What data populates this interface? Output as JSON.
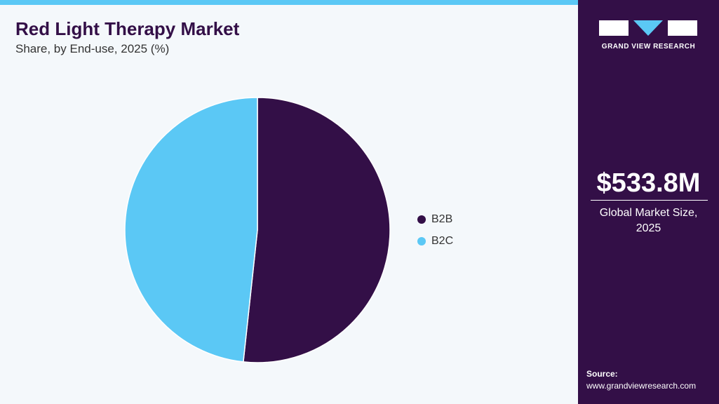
{
  "chart_data": {
    "type": "pie",
    "title": "Red Light Therapy Market",
    "subtitle": "Share, by End-use, 2025 (%)",
    "categories": [
      "B2B",
      "B2C"
    ],
    "values": [
      51.7,
      48.3
    ],
    "colors": [
      "#330f47",
      "#5bc8f5"
    ]
  },
  "sidebar": {
    "brand": "GRAND VIEW RESEARCH",
    "market_size": "$533.8M",
    "market_size_label": "Global Market Size, 2025",
    "source_label": "Source:",
    "source_url": "www.grandviewresearch.com"
  }
}
